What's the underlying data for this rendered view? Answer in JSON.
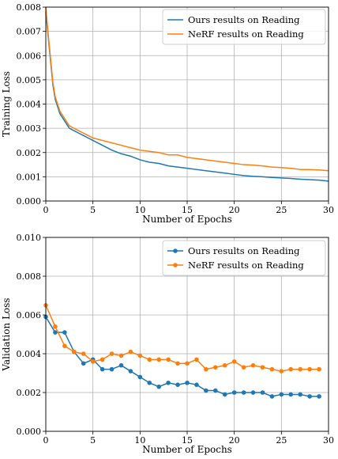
{
  "chart_data": [
    {
      "type": "line",
      "xlabel": "Number of Epochs",
      "ylabel": "Training Loss",
      "xlim": [
        0,
        30
      ],
      "ylim": [
        0,
        0.008
      ],
      "xticks": [
        0,
        5,
        10,
        15,
        20,
        25,
        30
      ],
      "xtick_labels": [
        "0",
        "5",
        "10",
        "15",
        "20",
        "25",
        "30"
      ],
      "yticks": [
        0,
        0.001,
        0.002,
        0.003,
        0.004,
        0.005,
        0.006,
        0.007,
        0.008
      ],
      "ytick_labels": [
        "0.000",
        "0.001",
        "0.002",
        "0.003",
        "0.004",
        "0.005",
        "0.006",
        "0.007",
        "0.008"
      ],
      "grid": true,
      "legend_position": "top-right",
      "series": [
        {
          "name": "Ours results on Reading",
          "color": "#1f77b4",
          "marker": "none",
          "x": [
            0,
            0.25,
            0.5,
            0.75,
            1,
            1.5,
            2,
            2.5,
            3,
            3.5,
            4,
            4.5,
            5,
            6,
            7,
            8,
            9,
            10,
            11,
            12,
            13,
            14,
            15,
            16,
            17,
            18,
            19,
            20,
            21,
            22,
            23,
            24,
            25,
            26,
            27,
            28,
            29,
            30
          ],
          "y": [
            0.0078,
            0.0068,
            0.0058,
            0.0048,
            0.0042,
            0.0036,
            0.0033,
            0.003,
            0.0029,
            0.0028,
            0.0027,
            0.0026,
            0.0025,
            0.0023,
            0.0021,
            0.00195,
            0.00185,
            0.0017,
            0.0016,
            0.00155,
            0.00145,
            0.0014,
            0.00135,
            0.0013,
            0.00125,
            0.0012,
            0.00115,
            0.0011,
            0.00105,
            0.00102,
            0.001,
            0.00097,
            0.00095,
            0.00093,
            0.0009,
            0.00088,
            0.00086,
            0.00082
          ]
        },
        {
          "name": "NeRF results on Reading",
          "color": "#ff7f0e",
          "marker": "none",
          "x": [
            0,
            0.25,
            0.5,
            0.75,
            1,
            1.5,
            2,
            2.5,
            3,
            3.5,
            4,
            4.5,
            5,
            6,
            7,
            8,
            9,
            10,
            11,
            12,
            13,
            14,
            15,
            16,
            17,
            18,
            19,
            20,
            21,
            22,
            23,
            24,
            25,
            26,
            27,
            28,
            29,
            30
          ],
          "y": [
            0.008,
            0.0069,
            0.0059,
            0.0049,
            0.0043,
            0.0037,
            0.0034,
            0.0031,
            0.003,
            0.0029,
            0.0028,
            0.0027,
            0.0026,
            0.0025,
            0.0024,
            0.0023,
            0.0022,
            0.0021,
            0.00205,
            0.002,
            0.0019,
            0.0019,
            0.0018,
            0.00175,
            0.0017,
            0.00165,
            0.0016,
            0.00155,
            0.0015,
            0.00148,
            0.00145,
            0.0014,
            0.00138,
            0.00135,
            0.0013,
            0.0013,
            0.00128,
            0.00125
          ]
        }
      ]
    },
    {
      "type": "line",
      "xlabel": "Number of Epochs",
      "ylabel": "Validation Loss",
      "xlim": [
        0,
        30
      ],
      "ylim": [
        0,
        0.01
      ],
      "xticks": [
        0,
        5,
        10,
        15,
        20,
        25,
        30
      ],
      "xtick_labels": [
        "0",
        "5",
        "10",
        "15",
        "20",
        "25",
        "30"
      ],
      "yticks": [
        0,
        0.002,
        0.004,
        0.006,
        0.008,
        0.01
      ],
      "ytick_labels": [
        "0.000",
        "0.002",
        "0.004",
        "0.006",
        "0.008",
        "0.010"
      ],
      "grid": true,
      "legend_position": "top-right",
      "series": [
        {
          "name": "Ours results on Reading",
          "color": "#1f77b4",
          "marker": "circle",
          "x": [
            0,
            1,
            2,
            3,
            4,
            5,
            6,
            7,
            8,
            9,
            10,
            11,
            12,
            13,
            14,
            15,
            16,
            17,
            18,
            19,
            20,
            21,
            22,
            23,
            24,
            25,
            26,
            27,
            28,
            29
          ],
          "y": [
            0.0059,
            0.0051,
            0.0051,
            0.0041,
            0.0035,
            0.0037,
            0.0032,
            0.0032,
            0.0034,
            0.0031,
            0.0028,
            0.0025,
            0.0023,
            0.0025,
            0.0024,
            0.0025,
            0.0024,
            0.0021,
            0.0021,
            0.0019,
            0.002,
            0.002,
            0.002,
            0.002,
            0.0018,
            0.0019,
            0.0019,
            0.0019,
            0.0018,
            0.0018
          ]
        },
        {
          "name": "NeRF results on Reading",
          "color": "#ff7f0e",
          "marker": "circle",
          "x": [
            0,
            1,
            2,
            3,
            4,
            5,
            6,
            7,
            8,
            9,
            10,
            11,
            12,
            13,
            14,
            15,
            16,
            17,
            18,
            19,
            20,
            21,
            22,
            23,
            24,
            25,
            26,
            27,
            28,
            29
          ],
          "y": [
            0.0065,
            0.0054,
            0.0044,
            0.0041,
            0.004,
            0.0036,
            0.0037,
            0.004,
            0.0039,
            0.0041,
            0.0039,
            0.0037,
            0.0037,
            0.0037,
            0.0035,
            0.0035,
            0.0037,
            0.0032,
            0.0033,
            0.0034,
            0.0036,
            0.0033,
            0.0034,
            0.0033,
            0.0032,
            0.0031,
            0.0032,
            0.0032,
            0.0032,
            0.0032
          ]
        }
      ]
    }
  ]
}
